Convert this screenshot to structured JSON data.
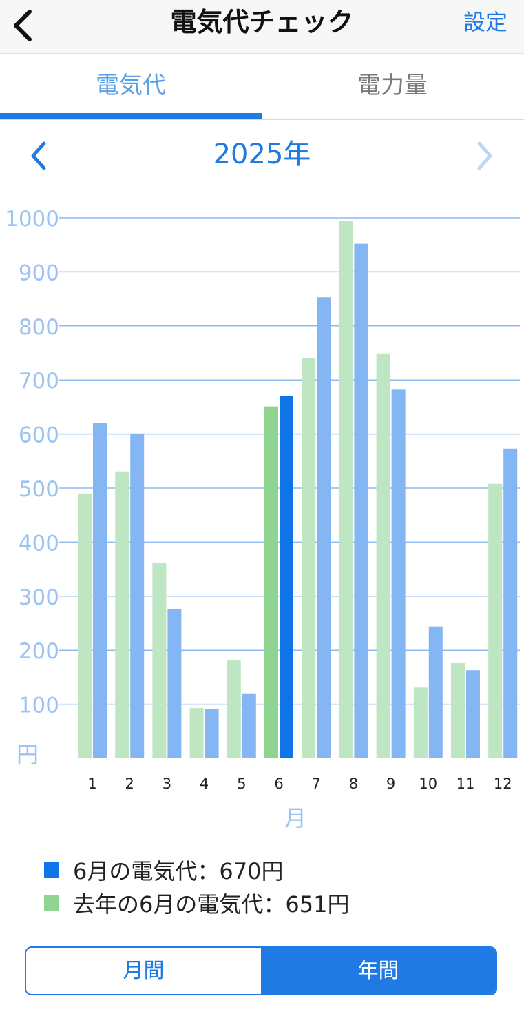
{
  "nav": {
    "title": "電気代チェック",
    "settings_label": "設定",
    "back_icon": "chevron-left-icon"
  },
  "tabs": [
    {
      "label": "電気代",
      "active": true
    },
    {
      "label": "電力量",
      "active": false
    }
  ],
  "year": {
    "label": "2025年",
    "prev_icon": "chevron-left-icon",
    "next_icon": "chevron-right-icon"
  },
  "colors": {
    "accent": "#1f7be3",
    "this_year": "#84b6f3",
    "last_year": "#bfe6c2",
    "this_year_highlight": "#0f74e8",
    "last_year_highlight": "#8fd490",
    "grid": "#8fbaf0",
    "axis_text": "#9cc4f2"
  },
  "chart_data": {
    "type": "bar",
    "categories": [
      "1",
      "2",
      "3",
      "4",
      "5",
      "6",
      "7",
      "8",
      "9",
      "10",
      "11",
      "12"
    ],
    "series": [
      {
        "values": [
          490,
          531,
          361,
          93,
          181,
          651,
          741,
          995,
          749,
          131,
          176,
          508
        ]
      },
      {
        "values": [
          620,
          601,
          276,
          91,
          119,
          670,
          853,
          952,
          682,
          244,
          163,
          573
        ]
      }
    ],
    "highlight_index": 5,
    "yticks": [
      100,
      200,
      300,
      400,
      500,
      600,
      700,
      800,
      900,
      1000
    ],
    "ylim": [
      0,
      1000
    ],
    "ylabel": "円",
    "xlabel": "月",
    "grid": true
  },
  "legend": [
    {
      "text": "6月の電気代：670円",
      "color": "#0f74e8"
    },
    {
      "text": "去年の6月の電気代：651円",
      "color": "#8fd490"
    }
  ],
  "segment": [
    {
      "label": "月間",
      "selected": false
    },
    {
      "label": "年間",
      "selected": true
    }
  ]
}
